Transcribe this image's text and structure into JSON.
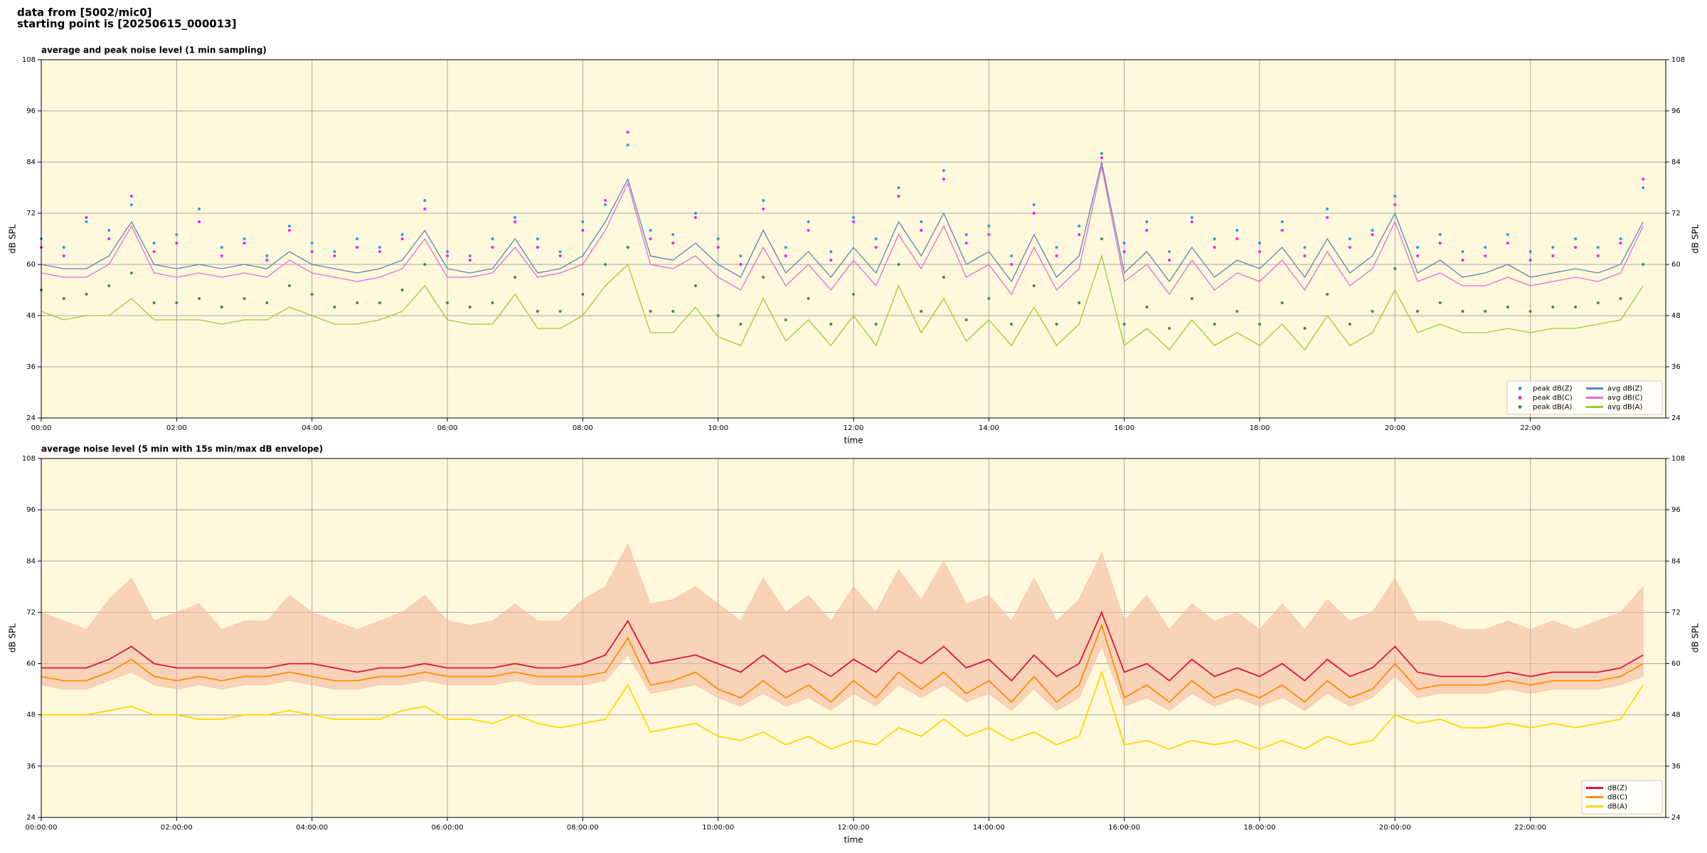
{
  "header": {
    "line1": "data from [5002/mic0]",
    "line2": "starting point is [20250615_000013]"
  },
  "chart_data": [
    {
      "type": "line",
      "title": "average and peak noise level (1 min sampling)",
      "xlabel": "time",
      "ylabel": "dB SPL",
      "background": "#fff8dc",
      "grid": true,
      "legend": "lower right",
      "legend_columns": 2,
      "xlim": [
        0,
        1440
      ],
      "ylim": [
        24,
        108
      ],
      "yticks": [
        24,
        36,
        48,
        60,
        72,
        84,
        96,
        108
      ],
      "xticks": [
        {
          "value": 0,
          "label": "00:00"
        },
        {
          "value": 120,
          "label": "02:00"
        },
        {
          "value": 240,
          "label": "04:00"
        },
        {
          "value": 360,
          "label": "06:00"
        },
        {
          "value": 480,
          "label": "08:00"
        },
        {
          "value": 600,
          "label": "10:00"
        },
        {
          "value": 720,
          "label": "12:00"
        },
        {
          "value": 840,
          "label": "14:00"
        },
        {
          "value": 960,
          "label": "16:00"
        },
        {
          "value": 1080,
          "label": "18:00"
        },
        {
          "value": 1200,
          "label": "20:00"
        },
        {
          "value": 1320,
          "label": "22:00"
        }
      ],
      "x": [
        0,
        20,
        40,
        60,
        80,
        100,
        120,
        140,
        160,
        180,
        200,
        220,
        240,
        260,
        280,
        300,
        320,
        340,
        360,
        380,
        400,
        420,
        440,
        460,
        480,
        500,
        520,
        540,
        560,
        580,
        600,
        620,
        640,
        660,
        680,
        700,
        720,
        740,
        760,
        780,
        800,
        820,
        840,
        860,
        880,
        900,
        920,
        940,
        960,
        980,
        1000,
        1020,
        1040,
        1060,
        1080,
        1100,
        1120,
        1140,
        1160,
        1180,
        1200,
        1220,
        1240,
        1260,
        1280,
        1300,
        1320,
        1340,
        1360,
        1380,
        1400,
        1420
      ],
      "series": [
        {
          "name": "peak dB(Z)",
          "type": "scatter",
          "color": "#2a9de0",
          "values": [
            66,
            64,
            70,
            68,
            74,
            65,
            67,
            73,
            64,
            66,
            62,
            69,
            65,
            63,
            66,
            64,
            67,
            75,
            63,
            62,
            66,
            71,
            66,
            63,
            70,
            74,
            88,
            68,
            67,
            72,
            66,
            62,
            75,
            64,
            70,
            63,
            71,
            66,
            78,
            70,
            82,
            67,
            69,
            62,
            74,
            64,
            69,
            86,
            65,
            70,
            63,
            71,
            66,
            68,
            65,
            70,
            64,
            73,
            66,
            68,
            76,
            64,
            67,
            63,
            64,
            67,
            63,
            64,
            66,
            64,
            66,
            78
          ]
        },
        {
          "name": "peak dB(C)",
          "type": "scatter",
          "color": "#f020f0",
          "values": [
            64,
            62,
            71,
            66,
            76,
            63,
            65,
            70,
            62,
            65,
            61,
            68,
            63,
            62,
            64,
            63,
            66,
            73,
            62,
            61,
            64,
            70,
            64,
            62,
            68,
            75,
            91,
            66,
            65,
            71,
            64,
            60,
            73,
            62,
            68,
            61,
            70,
            64,
            76,
            68,
            80,
            65,
            67,
            60,
            72,
            62,
            67,
            85,
            63,
            68,
            61,
            70,
            64,
            66,
            63,
            68,
            62,
            71,
            64,
            67,
            74,
            62,
            65,
            61,
            62,
            65,
            61,
            62,
            64,
            62,
            65,
            80
          ]
        },
        {
          "name": "peak dB(A)",
          "type": "scatter",
          "color": "#3c8c50",
          "values": [
            54,
            52,
            53,
            55,
            58,
            51,
            51,
            52,
            50,
            52,
            51,
            55,
            53,
            50,
            51,
            51,
            54,
            60,
            51,
            50,
            51,
            57,
            49,
            49,
            53,
            60,
            64,
            49,
            49,
            55,
            48,
            46,
            57,
            47,
            52,
            46,
            53,
            46,
            60,
            49,
            57,
            47,
            52,
            46,
            55,
            46,
            51,
            66,
            46,
            50,
            45,
            52,
            46,
            49,
            46,
            51,
            45,
            53,
            46,
            49,
            59,
            49,
            51,
            49,
            49,
            50,
            49,
            50,
            50,
            51,
            52,
            60
          ]
        },
        {
          "name": "avg dB(Z)",
          "type": "line",
          "color": "#5a86b4",
          "values": [
            60,
            59,
            59,
            62,
            70,
            60,
            59,
            60,
            59,
            60,
            59,
            63,
            60,
            59,
            58,
            59,
            61,
            68,
            59,
            58,
            59,
            66,
            58,
            59,
            62,
            70,
            80,
            62,
            61,
            65,
            60,
            57,
            68,
            58,
            63,
            57,
            64,
            58,
            70,
            62,
            72,
            60,
            63,
            56,
            67,
            57,
            62,
            84,
            58,
            63,
            56,
            64,
            57,
            61,
            59,
            64,
            57,
            66,
            58,
            62,
            72,
            58,
            61,
            57,
            58,
            60,
            57,
            58,
            59,
            58,
            60,
            70
          ]
        },
        {
          "name": "avg dB(C)",
          "type": "line",
          "color": "#da70d6",
          "values": [
            58,
            57,
            57,
            60,
            69,
            58,
            57,
            58,
            57,
            58,
            57,
            61,
            58,
            57,
            56,
            57,
            59,
            66,
            57,
            57,
            58,
            64,
            57,
            58,
            60,
            68,
            79,
            60,
            59,
            62,
            57,
            54,
            64,
            55,
            60,
            54,
            61,
            55,
            67,
            59,
            69,
            57,
            60,
            53,
            64,
            54,
            59,
            83,
            56,
            60,
            53,
            61,
            54,
            58,
            56,
            61,
            54,
            63,
            55,
            59,
            70,
            56,
            58,
            55,
            55,
            57,
            55,
            56,
            57,
            56,
            58,
            69
          ]
        },
        {
          "name": "avg dB(A)",
          "type": "line",
          "color": "#9acd32",
          "values": [
            49,
            47,
            48,
            48,
            52,
            47,
            47,
            47,
            46,
            47,
            47,
            50,
            48,
            46,
            46,
            47,
            49,
            55,
            47,
            46,
            46,
            53,
            45,
            45,
            48,
            55,
            60,
            44,
            44,
            50,
            43,
            41,
            52,
            42,
            47,
            41,
            48,
            41,
            55,
            44,
            52,
            42,
            47,
            41,
            50,
            41,
            46,
            62,
            41,
            45,
            40,
            47,
            41,
            44,
            41,
            46,
            40,
            48,
            41,
            44,
            54,
            44,
            46,
            44,
            44,
            45,
            44,
            45,
            45,
            46,
            47,
            55
          ]
        }
      ]
    },
    {
      "type": "line",
      "title": "average noise level (5 min with 15s min/max dB envelope)",
      "xlabel": "time",
      "ylabel": "dB SPL",
      "background": "#fff8dc",
      "grid": true,
      "legend": "lower right",
      "legend_columns": 1,
      "xlim": [
        0,
        1440
      ],
      "ylim": [
        24,
        108
      ],
      "yticks": [
        24,
        36,
        48,
        60,
        72,
        84,
        96,
        108
      ],
      "xticks": [
        {
          "value": 0,
          "label": "00:00:00"
        },
        {
          "value": 120,
          "label": "02:00:00"
        },
        {
          "value": 240,
          "label": "04:00:00"
        },
        {
          "value": 360,
          "label": "06:00:00"
        },
        {
          "value": 480,
          "label": "08:00:00"
        },
        {
          "value": 600,
          "label": "10:00:00"
        },
        {
          "value": 720,
          "label": "12:00:00"
        },
        {
          "value": 840,
          "label": "14:00:00"
        },
        {
          "value": 960,
          "label": "16:00:00"
        },
        {
          "value": 1080,
          "label": "18:00:00"
        },
        {
          "value": 1200,
          "label": "20:00:00"
        },
        {
          "value": 1320,
          "label": "22:00:00"
        }
      ],
      "x": [
        0,
        20,
        40,
        60,
        80,
        100,
        120,
        140,
        160,
        180,
        200,
        220,
        240,
        260,
        280,
        300,
        320,
        340,
        360,
        380,
        400,
        420,
        440,
        460,
        480,
        500,
        520,
        540,
        560,
        580,
        600,
        620,
        640,
        660,
        680,
        700,
        720,
        740,
        760,
        780,
        800,
        820,
        840,
        860,
        880,
        900,
        920,
        940,
        960,
        980,
        1000,
        1020,
        1040,
        1060,
        1080,
        1100,
        1120,
        1140,
        1160,
        1180,
        1200,
        1220,
        1240,
        1260,
        1280,
        1300,
        1320,
        1340,
        1360,
        1380,
        1400,
        1420
      ],
      "envelope": {
        "color": "#f4b49a",
        "max": [
          72,
          70,
          68,
          75,
          80,
          70,
          72,
          74,
          68,
          70,
          70,
          76,
          72,
          70,
          68,
          70,
          72,
          76,
          70,
          69,
          70,
          74,
          70,
          70,
          75,
          78,
          88,
          74,
          75,
          78,
          74,
          70,
          80,
          72,
          76,
          70,
          78,
          72,
          82,
          75,
          84,
          74,
          76,
          70,
          80,
          70,
          75,
          86,
          70,
          76,
          68,
          74,
          70,
          72,
          68,
          74,
          68,
          75,
          70,
          72,
          80,
          70,
          70,
          68,
          68,
          70,
          68,
          70,
          68,
          70,
          72,
          78
        ],
        "min": [
          55,
          54,
          54,
          56,
          58,
          55,
          54,
          55,
          54,
          55,
          55,
          56,
          55,
          54,
          54,
          55,
          55,
          56,
          55,
          55,
          55,
          56,
          55,
          55,
          55,
          56,
          62,
          53,
          54,
          55,
          52,
          50,
          53,
          50,
          52,
          49,
          53,
          50,
          55,
          52,
          55,
          51,
          53,
          49,
          54,
          49,
          52,
          64,
          50,
          52,
          49,
          53,
          50,
          52,
          50,
          52,
          49,
          53,
          50,
          52,
          57,
          52,
          53,
          53,
          53,
          54,
          53,
          54,
          54,
          54,
          55,
          57
        ]
      },
      "series": [
        {
          "name": "dB(Z)",
          "type": "line",
          "color": "#dc143c",
          "values": [
            59,
            59,
            59,
            61,
            64,
            60,
            59,
            59,
            59,
            59,
            59,
            60,
            60,
            59,
            58,
            59,
            59,
            60,
            59,
            59,
            59,
            60,
            59,
            59,
            60,
            62,
            70,
            60,
            61,
            62,
            60,
            58,
            62,
            58,
            60,
            57,
            61,
            58,
            63,
            60,
            64,
            59,
            61,
            56,
            62,
            57,
            60,
            72,
            58,
            60,
            56,
            61,
            57,
            59,
            57,
            60,
            56,
            61,
            57,
            59,
            64,
            58,
            57,
            57,
            57,
            58,
            57,
            58,
            58,
            58,
            59,
            62
          ]
        },
        {
          "name": "dB(C)",
          "type": "line",
          "color": "#ff8c00",
          "values": [
            57,
            56,
            56,
            58,
            61,
            57,
            56,
            57,
            56,
            57,
            57,
            58,
            57,
            56,
            56,
            57,
            57,
            58,
            57,
            57,
            57,
            58,
            57,
            57,
            57,
            58,
            66,
            55,
            56,
            58,
            54,
            52,
            56,
            52,
            55,
            51,
            56,
            52,
            58,
            54,
            58,
            53,
            56,
            51,
            57,
            51,
            55,
            69,
            52,
            55,
            51,
            56,
            52,
            54,
            52,
            55,
            51,
            56,
            52,
            54,
            60,
            54,
            55,
            55,
            55,
            56,
            55,
            56,
            56,
            56,
            57,
            60
          ]
        },
        {
          "name": "dB(A)",
          "type": "line",
          "color": "#ffd700",
          "values": [
            48,
            48,
            48,
            49,
            50,
            48,
            48,
            47,
            47,
            48,
            48,
            49,
            48,
            47,
            47,
            47,
            49,
            50,
            47,
            47,
            46,
            48,
            46,
            45,
            46,
            47,
            55,
            44,
            45,
            46,
            43,
            42,
            44,
            41,
            43,
            40,
            42,
            41,
            45,
            43,
            47,
            43,
            45,
            42,
            44,
            41,
            43,
            58,
            41,
            42,
            40,
            42,
            41,
            42,
            40,
            42,
            40,
            43,
            41,
            42,
            48,
            46,
            47,
            45,
            45,
            46,
            45,
            46,
            45,
            46,
            47,
            55
          ]
        }
      ]
    }
  ]
}
